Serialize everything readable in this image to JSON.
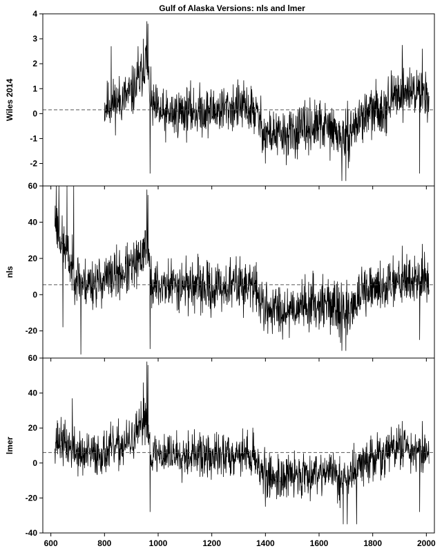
{
  "chart_data": {
    "type": "line",
    "title": "Gulf of Alaska Versions: nls and lmer",
    "xlabel": "",
    "xlim": [
      570,
      2030
    ],
    "x_ticks": [
      600,
      800,
      1000,
      1200,
      1400,
      1600,
      1800,
      2000
    ],
    "x_ticks_visible_on": "bottom panel",
    "grid": false,
    "legend": "none",
    "panels": [
      {
        "id": "wiles",
        "ylabel": "Wiles 2014",
        "ylim": [
          -2.9,
          4
        ],
        "y_ticks": [
          -2,
          -1,
          0,
          1,
          2,
          3,
          4
        ],
        "reference_line": 0.15,
        "x_start": 800,
        "x_end": 2010,
        "seed": 11,
        "base": 0.15,
        "noise_amp": 0.85,
        "clip": [
          -2.7,
          3.8
        ],
        "waypoints": [
          [
            800,
            0.3
          ],
          [
            850,
            0.5
          ],
          [
            900,
            0.8
          ],
          [
            930,
            1.3
          ],
          [
            955,
            2.2
          ],
          [
            975,
            0.3
          ],
          [
            1020,
            -0.1
          ],
          [
            1100,
            0.1
          ],
          [
            1200,
            0.1
          ],
          [
            1300,
            0.3
          ],
          [
            1360,
            0.1
          ],
          [
            1400,
            -0.8
          ],
          [
            1480,
            -0.9
          ],
          [
            1550,
            -0.6
          ],
          [
            1620,
            -0.5
          ],
          [
            1700,
            -1.0
          ],
          [
            1760,
            -0.1
          ],
          [
            1850,
            0.3
          ],
          [
            1900,
            0.9
          ],
          [
            1950,
            0.9
          ],
          [
            2010,
            0.8
          ]
        ],
        "spikes": [
          [
            958,
            3.7
          ],
          [
            962,
            3.6
          ],
          [
            945,
            3.0
          ],
          [
            925,
            2.7
          ],
          [
            825,
            2.7
          ],
          [
            970,
            -2.4
          ],
          [
            1685,
            -2.7
          ],
          [
            1700,
            -2.7
          ],
          [
            1910,
            2.75
          ],
          [
            1985,
            2.6
          ],
          [
            1975,
            -2.4
          ],
          [
            1400,
            -2.0
          ]
        ]
      },
      {
        "id": "nls",
        "ylabel": "nls",
        "ylim": [
          -35,
          60
        ],
        "y_ticks": [
          -20,
          0,
          20,
          40,
          60
        ],
        "reference_line": 5.5,
        "x_start": 615,
        "x_end": 2010,
        "seed": 23,
        "base": 5.5,
        "noise_amp": 12,
        "clip": [
          -33,
          60
        ],
        "waypoints": [
          [
            615,
            42
          ],
          [
            640,
            30
          ],
          [
            680,
            14
          ],
          [
            720,
            6
          ],
          [
            800,
            8
          ],
          [
            900,
            14
          ],
          [
            930,
            18
          ],
          [
            955,
            30
          ],
          [
            975,
            5
          ],
          [
            1020,
            5
          ],
          [
            1100,
            6
          ],
          [
            1200,
            3
          ],
          [
            1300,
            6
          ],
          [
            1360,
            4
          ],
          [
            1400,
            -8
          ],
          [
            1480,
            -8
          ],
          [
            1550,
            -5
          ],
          [
            1620,
            -4
          ],
          [
            1700,
            -10
          ],
          [
            1760,
            0
          ],
          [
            1850,
            5
          ],
          [
            1900,
            10
          ],
          [
            1950,
            8
          ],
          [
            2010,
            8
          ]
        ],
        "spikes": [
          [
            620,
            60
          ],
          [
            630,
            60
          ],
          [
            660,
            60
          ],
          [
            685,
            60
          ],
          [
            958,
            58
          ],
          [
            962,
            55
          ],
          [
            970,
            -30
          ],
          [
            712,
            -33
          ],
          [
            1685,
            -31
          ],
          [
            1700,
            -31
          ],
          [
            1910,
            27
          ],
          [
            1985,
            28
          ],
          [
            1975,
            -25
          ],
          [
            645,
            -18
          ]
        ]
      },
      {
        "id": "lmer",
        "ylabel": "lmer",
        "ylim": [
          -40,
          60
        ],
        "y_ticks": [
          -40,
          -20,
          0,
          20,
          40,
          60
        ],
        "reference_line": 6,
        "x_start": 615,
        "x_end": 2010,
        "seed": 37,
        "base": 6,
        "noise_amp": 11,
        "clip": [
          -38,
          58
        ],
        "waypoints": [
          [
            615,
            14
          ],
          [
            660,
            10
          ],
          [
            720,
            4
          ],
          [
            800,
            6
          ],
          [
            900,
            12
          ],
          [
            930,
            18
          ],
          [
            955,
            28
          ],
          [
            975,
            5
          ],
          [
            1020,
            5
          ],
          [
            1100,
            6
          ],
          [
            1200,
            3
          ],
          [
            1300,
            6
          ],
          [
            1360,
            4
          ],
          [
            1400,
            -8
          ],
          [
            1480,
            -8
          ],
          [
            1550,
            -6
          ],
          [
            1620,
            -4
          ],
          [
            1700,
            -10
          ],
          [
            1760,
            0
          ],
          [
            1850,
            5
          ],
          [
            1900,
            10
          ],
          [
            1950,
            8
          ],
          [
            2010,
            6
          ]
        ],
        "spikes": [
          [
            958,
            58
          ],
          [
            962,
            56
          ],
          [
            945,
            46
          ],
          [
            970,
            -28
          ],
          [
            1690,
            -35
          ],
          [
            1705,
            -35
          ],
          [
            1740,
            -35
          ],
          [
            1910,
            24
          ],
          [
            1985,
            24
          ],
          [
            1975,
            -28
          ],
          [
            680,
            37
          ],
          [
            1400,
            -25
          ]
        ]
      }
    ]
  }
}
